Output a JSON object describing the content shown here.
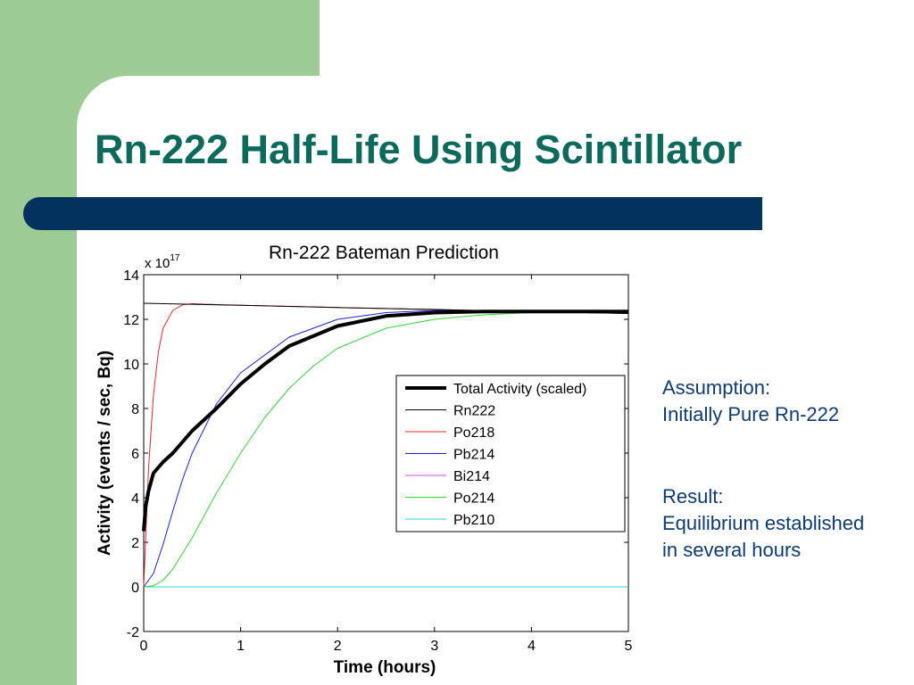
{
  "slide": {
    "title": "Rn-222 Half-Life Using Scintillator",
    "colors": {
      "green_band": "#9ccc94",
      "title": "#0b6a5c",
      "bar": "#04325f",
      "notes": "#0d3b74"
    },
    "notes": {
      "assumption_heading": "Assumption:",
      "assumption_text": "Initially Pure Rn-222",
      "result_heading": "Result:",
      "result_line1": "Equilibrium established",
      "result_line2": "in several hours"
    }
  },
  "chart_data": {
    "type": "line",
    "title": "Rn-222 Bateman Prediction",
    "xlabel": "Time (hours)",
    "ylabel": "Activity (events / sec, Bq)",
    "y_multiplier": "x 10",
    "y_multiplier_exp": "17",
    "xlim": [
      0,
      5
    ],
    "ylim": [
      -2,
      14
    ],
    "x_ticks": [
      "0",
      "1",
      "2",
      "3",
      "4",
      "5"
    ],
    "y_ticks": [
      "-2",
      "0",
      "2",
      "4",
      "6",
      "8",
      "10",
      "12",
      "14"
    ],
    "grid": false,
    "legend_position": "center-right",
    "series": [
      {
        "name": "Total Activity (scaled)",
        "color": "#000000",
        "width": 4,
        "x": [
          0,
          0.02,
          0.05,
          0.1,
          0.2,
          0.3,
          0.5,
          0.75,
          1.0,
          1.25,
          1.5,
          2.0,
          2.5,
          3.0,
          3.5,
          4.0,
          4.5,
          5.0
        ],
        "y": [
          2.5,
          3.6,
          4.3,
          5.1,
          5.6,
          6.0,
          7.0,
          8.0,
          9.1,
          10.0,
          10.8,
          11.7,
          12.15,
          12.3,
          12.35,
          12.35,
          12.35,
          12.35
        ]
      },
      {
        "name": "Rn222",
        "color": "#000000",
        "width": 1,
        "x": [
          0,
          1,
          2,
          3,
          4,
          5
        ],
        "y": [
          12.72,
          12.63,
          12.53,
          12.44,
          12.35,
          12.26
        ]
      },
      {
        "name": "Po218",
        "color": "#e8282c",
        "width": 1,
        "x": [
          0,
          0.05,
          0.1,
          0.15,
          0.2,
          0.3,
          0.4,
          0.5,
          1,
          2,
          3,
          4,
          5
        ],
        "y": [
          0,
          5.3,
          8.6,
          10.5,
          11.6,
          12.4,
          12.65,
          12.7,
          12.63,
          12.53,
          12.44,
          12.35,
          12.26
        ]
      },
      {
        "name": "Pb214",
        "color": "#1c20d8",
        "width": 1,
        "x": [
          0,
          0.1,
          0.2,
          0.3,
          0.4,
          0.5,
          0.75,
          1,
          1.5,
          2,
          2.5,
          3,
          3.5,
          4,
          5
        ],
        "y": [
          0,
          0.6,
          1.9,
          3.4,
          4.8,
          6.0,
          8.2,
          9.6,
          11.2,
          12.0,
          12.3,
          12.4,
          12.4,
          12.38,
          12.3
        ]
      },
      {
        "name": "Bi214",
        "color": "#d24fd2",
        "width": 1,
        "x": [
          0,
          5
        ],
        "y": [
          0,
          0
        ]
      },
      {
        "name": "Po214",
        "color": "#33d633",
        "width": 1,
        "x": [
          0,
          0.1,
          0.2,
          0.3,
          0.5,
          0.75,
          1,
          1.25,
          1.5,
          1.75,
          2,
          2.5,
          3,
          3.5,
          4,
          4.5,
          5
        ],
        "y": [
          0,
          0.05,
          0.3,
          0.8,
          2.2,
          4.2,
          6.0,
          7.6,
          8.9,
          9.9,
          10.7,
          11.6,
          12.0,
          12.2,
          12.3,
          12.32,
          12.3
        ]
      },
      {
        "name": "Pb210",
        "color": "#2ad3d3",
        "width": 1,
        "x": [
          0,
          5
        ],
        "y": [
          0,
          0
        ]
      }
    ]
  }
}
